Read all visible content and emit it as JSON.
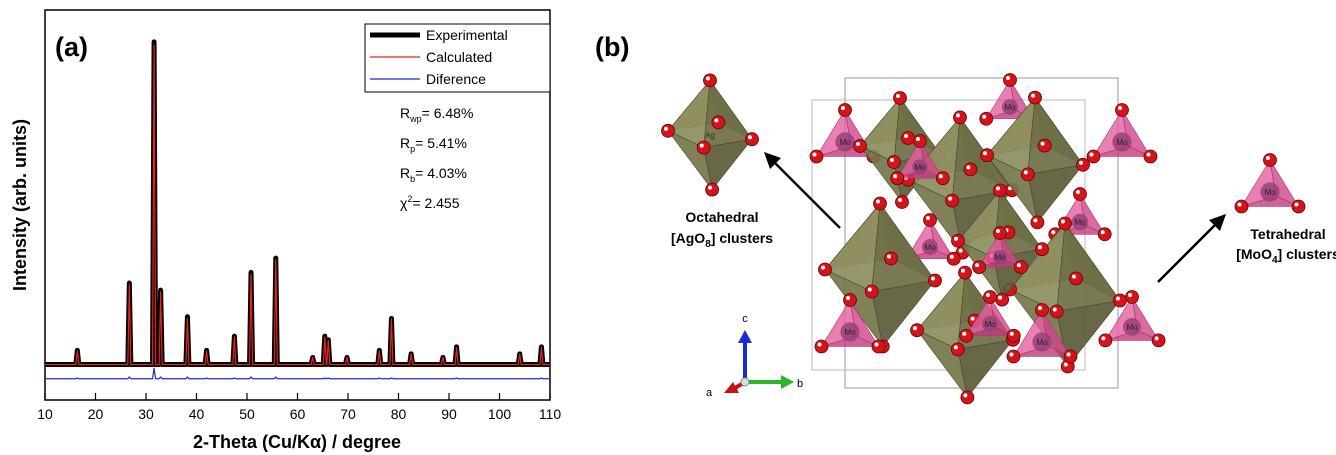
{
  "chart_data": {
    "type": "line",
    "panel_label": "(a)",
    "xlabel": "2-Theta (Cu/Kα) / degree",
    "ylabel": "Intensity (arb. units)",
    "xlim": [
      10,
      110
    ],
    "xticks": [
      10,
      20,
      30,
      40,
      50,
      60,
      70,
      80,
      90,
      100,
      110
    ],
    "ylim": [
      -10,
      100
    ],
    "legend": "upper right",
    "x": [
      10,
      16.1,
      16.4,
      16.7,
      26.4,
      26.7,
      27.0,
      31.3,
      31.6,
      31.9,
      32.6,
      32.9,
      33.2,
      37.9,
      38.2,
      38.5,
      41.7,
      42.0,
      42.3,
      47.2,
      47.5,
      47.8,
      50.5,
      50.8,
      51.1,
      55.4,
      55.7,
      56.0,
      62.7,
      63.0,
      63.3,
      65.1,
      65.4,
      65.7,
      65.8,
      66.1,
      66.4,
      69.5,
      69.8,
      70.1,
      75.9,
      76.2,
      76.5,
      78.3,
      78.6,
      78.9,
      82.2,
      82.5,
      82.8,
      88.5,
      88.8,
      89.1,
      91.2,
      91.5,
      91.8,
      103.7,
      104.0,
      104.3,
      108.0,
      108.3,
      108.6,
      110
    ],
    "series": [
      {
        "name": "Experimental",
        "color": "#000000",
        "width": 5,
        "values": [
          0,
          0,
          4,
          0,
          0,
          23,
          0,
          0,
          91,
          0,
          0,
          21,
          0,
          0,
          13.5,
          0,
          0,
          4,
          0,
          0,
          8,
          0,
          0,
          26,
          0,
          0,
          30,
          0,
          0,
          2,
          0,
          0,
          8,
          0,
          0,
          7,
          0,
          0,
          2,
          0,
          0,
          4,
          0,
          0,
          13,
          0,
          0,
          3,
          0,
          0,
          2,
          0,
          0,
          5,
          0,
          0,
          3,
          0,
          0,
          5,
          0,
          0
        ]
      },
      {
        "name": "Calculated",
        "color": "#e8231c",
        "width": 1.2,
        "values": [
          0,
          0,
          3.8,
          0,
          0,
          22.5,
          0,
          0,
          90,
          0,
          0,
          20.5,
          0,
          0,
          13,
          0,
          0,
          3.8,
          0,
          0,
          7.8,
          0,
          0,
          25.5,
          0,
          0,
          29.5,
          0,
          0,
          2,
          0,
          0,
          7.8,
          0,
          0,
          6.8,
          0,
          0,
          2,
          0,
          0,
          3.8,
          0,
          0,
          12.8,
          0,
          0,
          3,
          0,
          0,
          2,
          0,
          0,
          4.8,
          0,
          0,
          3,
          0,
          0,
          4.8,
          0,
          0
        ]
      },
      {
        "name": "Diference",
        "color": "#1a2bd6",
        "width": 1.2,
        "values": [
          -4,
          -4,
          -3.8,
          -4,
          -4,
          -3.5,
          -4,
          -4,
          -1,
          -4,
          -4,
          -3.5,
          -4,
          -4,
          -3.5,
          -4,
          -4,
          -3.8,
          -4,
          -4,
          -3.8,
          -4,
          -4,
          -3.5,
          -4,
          -4,
          -3.5,
          -4,
          -4,
          -4,
          -4,
          -4,
          -3.8,
          -4,
          -4,
          -3.8,
          -4,
          -4,
          -4,
          -4,
          -4,
          -3.8,
          -4,
          -4,
          -3.8,
          -4,
          -4,
          -4,
          -4,
          -4,
          -4,
          -4,
          -4,
          -3.8,
          -4,
          -4,
          -4,
          -4,
          -4,
          -3.8,
          -4,
          -4
        ]
      }
    ],
    "annotations": [
      {
        "symbol": "R",
        "sub": "wp",
        "text": "= 6.48%"
      },
      {
        "symbol": "R",
        "sub": "p",
        "text": "= 5.41%"
      },
      {
        "symbol": "R",
        "sub": "b",
        "text": "= 4.03%"
      },
      {
        "symbol": "χ",
        "sup": "2",
        "text": "= 2.455"
      }
    ]
  },
  "structure": {
    "panel_label": "(b)",
    "octahedral": {
      "line1": "Octahedral",
      "line2": [
        "[AgO",
        "8",
        "] clusters"
      ]
    },
    "tetrahedral": {
      "line1": "Tetrahedral",
      "line2": [
        "[MoO",
        "4",
        "] clusters"
      ]
    },
    "axes": {
      "a": "a",
      "b": "b",
      "c": "c"
    },
    "atoms": {
      "ag": "Ag",
      "mo": "Mo"
    }
  }
}
